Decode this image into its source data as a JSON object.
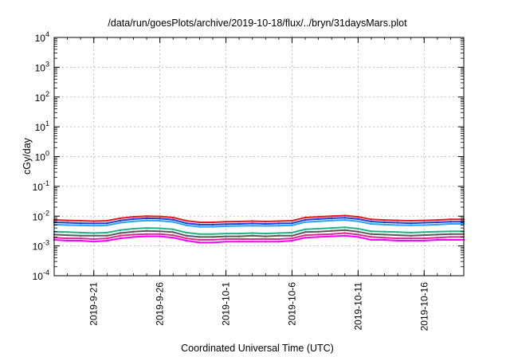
{
  "chart_data": {
    "type": "line",
    "title": "/data/run/goesPlots/archive/2019-10-18/flux/../bryn/31daysMars.plot",
    "xlabel": "Coordinated Universal Time (UTC)",
    "ylabel": "cGy/day",
    "yscale": "log",
    "ylim": [
      0.0001,
      10000
    ],
    "xlim": [
      "2019-09-18",
      "2019-10-19"
    ],
    "grid": true,
    "y_ticks": [
      {
        "value": 0.0001,
        "base": "10",
        "exp": "-4"
      },
      {
        "value": 0.001,
        "base": "10",
        "exp": "-3"
      },
      {
        "value": 0.01,
        "base": "10",
        "exp": "-2"
      },
      {
        "value": 0.1,
        "base": "10",
        "exp": "-1"
      },
      {
        "value": 1,
        "base": "10",
        "exp": "0"
      },
      {
        "value": 10,
        "base": "10",
        "exp": "1"
      },
      {
        "value": 100,
        "base": "10",
        "exp": "2"
      },
      {
        "value": 1000,
        "base": "10",
        "exp": "3"
      },
      {
        "value": 10000,
        "base": "10",
        "exp": "4"
      }
    ],
    "x_ticks": [
      {
        "date": "2019-09-21",
        "label": "2019-9-21"
      },
      {
        "date": "2019-09-26",
        "label": "2019-9-26"
      },
      {
        "date": "2019-10-01",
        "label": "2019-10-1"
      },
      {
        "date": "2019-10-06",
        "label": "2019-10-6"
      },
      {
        "date": "2019-10-11",
        "label": "2019-10-11"
      },
      {
        "date": "2019-10-16",
        "label": "2019-10-16"
      }
    ],
    "x": [
      "2019-09-18",
      "2019-09-19",
      "2019-09-20",
      "2019-09-21",
      "2019-09-22",
      "2019-09-23",
      "2019-09-24",
      "2019-09-25",
      "2019-09-26",
      "2019-09-27",
      "2019-09-28",
      "2019-09-29",
      "2019-09-30",
      "2019-10-01",
      "2019-10-02",
      "2019-10-03",
      "2019-10-04",
      "2019-10-05",
      "2019-10-06",
      "2019-10-07",
      "2019-10-08",
      "2019-10-09",
      "2019-10-10",
      "2019-10-11",
      "2019-10-12",
      "2019-10-13",
      "2019-10-14",
      "2019-10-15",
      "2019-10-16",
      "2019-10-17",
      "2019-10-18",
      "2019-10-19"
    ],
    "series": [
      {
        "color": "#e41a1c",
        "values": [
          0.0075,
          0.0072,
          0.007,
          0.0068,
          0.007,
          0.0085,
          0.0095,
          0.01,
          0.0098,
          0.009,
          0.007,
          0.0062,
          0.0062,
          0.0065,
          0.0066,
          0.0068,
          0.0066,
          0.0068,
          0.007,
          0.009,
          0.0095,
          0.01,
          0.0105,
          0.0095,
          0.0078,
          0.0074,
          0.0072,
          0.007,
          0.0072,
          0.0074,
          0.0078,
          0.0078
        ]
      },
      {
        "color": "#1f3fd6",
        "values": [
          0.0062,
          0.006,
          0.0058,
          0.0057,
          0.0058,
          0.0071,
          0.008,
          0.0085,
          0.0083,
          0.0076,
          0.0058,
          0.0052,
          0.0052,
          0.0054,
          0.0055,
          0.0057,
          0.0055,
          0.0057,
          0.0058,
          0.0075,
          0.008,
          0.0085,
          0.0088,
          0.008,
          0.0066,
          0.0062,
          0.006,
          0.0058,
          0.006,
          0.0062,
          0.0065,
          0.0065
        ]
      },
      {
        "color": "#2ba3ff",
        "values": [
          0.0052,
          0.005,
          0.0049,
          0.0048,
          0.0049,
          0.006,
          0.0067,
          0.0071,
          0.007,
          0.0064,
          0.0049,
          0.0044,
          0.0044,
          0.0046,
          0.0047,
          0.0048,
          0.0047,
          0.0048,
          0.0049,
          0.0063,
          0.0067,
          0.0071,
          0.0074,
          0.0067,
          0.0055,
          0.0052,
          0.005,
          0.0049,
          0.005,
          0.0052,
          0.0055,
          0.0055
        ]
      },
      {
        "color": "#1fb38a",
        "values": [
          0.003,
          0.0029,
          0.0028,
          0.0027,
          0.0028,
          0.0034,
          0.0038,
          0.004,
          0.0039,
          0.0036,
          0.0028,
          0.0025,
          0.0025,
          0.0026,
          0.0026,
          0.0027,
          0.0026,
          0.0027,
          0.0028,
          0.0036,
          0.0038,
          0.004,
          0.0042,
          0.0038,
          0.0031,
          0.003,
          0.0029,
          0.0028,
          0.0029,
          0.003,
          0.0031,
          0.0031
        ]
      },
      {
        "color": "#5a5a5a",
        "values": [
          0.0024,
          0.0023,
          0.0022,
          0.0022,
          0.0022,
          0.0027,
          0.003,
          0.0032,
          0.0031,
          0.0029,
          0.0022,
          0.002,
          0.002,
          0.0021,
          0.0021,
          0.0022,
          0.0021,
          0.0022,
          0.0022,
          0.0029,
          0.003,
          0.0032,
          0.0034,
          0.003,
          0.0025,
          0.0024,
          0.0023,
          0.0022,
          0.0023,
          0.0024,
          0.0025,
          0.0025
        ]
      },
      {
        "color": "#d62f8e",
        "values": [
          0.0019,
          0.0018,
          0.0018,
          0.0017,
          0.0018,
          0.0022,
          0.0024,
          0.0025,
          0.0025,
          0.0023,
          0.0018,
          0.0016,
          0.0016,
          0.0017,
          0.0017,
          0.0017,
          0.0017,
          0.0017,
          0.0018,
          0.0023,
          0.0024,
          0.0025,
          0.0027,
          0.0024,
          0.002,
          0.0019,
          0.0018,
          0.0018,
          0.0018,
          0.0019,
          0.002,
          0.002
        ]
      },
      {
        "color": "#ff00ff",
        "values": [
          0.0016,
          0.0015,
          0.0015,
          0.0014,
          0.0015,
          0.0018,
          0.002,
          0.0021,
          0.0021,
          0.0019,
          0.0015,
          0.0013,
          0.0013,
          0.0014,
          0.0014,
          0.0014,
          0.0014,
          0.0014,
          0.0015,
          0.0019,
          0.002,
          0.0021,
          0.0022,
          0.002,
          0.0016,
          0.0016,
          0.0015,
          0.0015,
          0.0015,
          0.0016,
          0.0016,
          0.0016
        ]
      }
    ]
  }
}
